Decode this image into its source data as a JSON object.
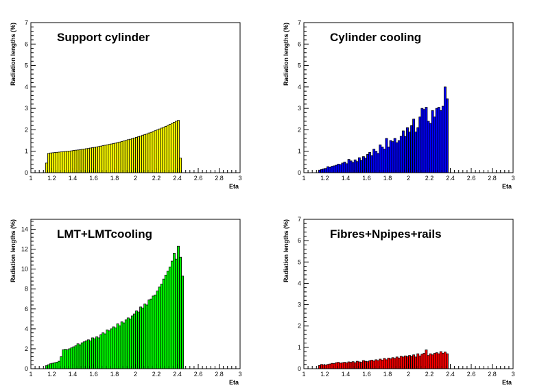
{
  "chart_data": [
    {
      "type": "bar",
      "title": "Support cylinder",
      "xlabel": "Eta",
      "ylabel": "Radiation lengths (%)",
      "xlim": [
        1,
        3
      ],
      "ylim": [
        0,
        7
      ],
      "xticks": [
        "1",
        "1.2",
        "1.4",
        "1.6",
        "1.8",
        "2",
        "2.2",
        "2.4",
        "2.6",
        "2.8",
        "3"
      ],
      "yticks": [
        "0",
        "1",
        "2",
        "3",
        "4",
        "5",
        "6",
        "7"
      ],
      "color": "#ffff00",
      "bin_start": 1.14,
      "bin_width": 0.02,
      "values": [
        0.45,
        0.9,
        0.92,
        0.93,
        0.94,
        0.95,
        0.96,
        0.97,
        0.98,
        0.99,
        1.0,
        1.01,
        1.02,
        1.04,
        1.05,
        1.06,
        1.07,
        1.09,
        1.1,
        1.12,
        1.13,
        1.15,
        1.17,
        1.18,
        1.2,
        1.22,
        1.24,
        1.26,
        1.28,
        1.3,
        1.32,
        1.34,
        1.36,
        1.38,
        1.41,
        1.43,
        1.46,
        1.48,
        1.51,
        1.54,
        1.56,
        1.59,
        1.62,
        1.65,
        1.68,
        1.71,
        1.75,
        1.78,
        1.81,
        1.85,
        1.88,
        1.92,
        1.96,
        2.0,
        2.04,
        2.08,
        2.12,
        2.16,
        2.21,
        2.25,
        2.3,
        2.35,
        2.4,
        2.44,
        0.68
      ]
    },
    {
      "type": "bar",
      "title": "Cylinder cooling",
      "xlabel": "Eta",
      "ylabel": "Radiation lengths (%)",
      "xlim": [
        1,
        3
      ],
      "ylim": [
        0,
        7
      ],
      "xticks": [
        "1",
        "1.2",
        "1.4",
        "1.6",
        "1.8",
        "2",
        "2.2",
        "2.4",
        "2.6",
        "2.8",
        "3"
      ],
      "yticks": [
        "0",
        "1",
        "2",
        "3",
        "4",
        "5",
        "6",
        "7"
      ],
      "color": "#0000ff",
      "bin_start": 1.14,
      "bin_width": 0.02,
      "values": [
        0.12,
        0.15,
        0.18,
        0.2,
        0.28,
        0.25,
        0.3,
        0.32,
        0.35,
        0.4,
        0.38,
        0.45,
        0.5,
        0.42,
        0.62,
        0.55,
        0.48,
        0.6,
        0.52,
        0.7,
        0.58,
        0.75,
        0.68,
        0.85,
        0.95,
        0.8,
        1.1,
        1.0,
        0.9,
        1.3,
        1.2,
        1.1,
        1.6,
        1.2,
        1.5,
        1.45,
        1.6,
        1.4,
        1.5,
        1.7,
        1.95,
        1.7,
        2.1,
        1.9,
        2.2,
        2.5,
        1.9,
        2.1,
        2.6,
        3.0,
        2.95,
        3.05,
        2.4,
        2.3,
        2.9,
        2.6,
        3.0,
        3.05,
        2.9,
        3.1,
        4.0,
        3.45
      ]
    },
    {
      "type": "bar",
      "title": "LMT+LMTcooling",
      "xlabel": "Eta",
      "ylabel": "Radiation lengths (%)",
      "xlim": [
        1,
        3
      ],
      "ylim": [
        0,
        15
      ],
      "xticks": [
        "1",
        "1.2",
        "1.4",
        "1.6",
        "1.8",
        "2",
        "2.2",
        "2.4",
        "2.6",
        "2.8",
        "3"
      ],
      "yticks": [
        "0",
        "2",
        "4",
        "6",
        "8",
        "10",
        "12",
        "14"
      ],
      "color": "#00ff00",
      "bin_start": 1.14,
      "bin_width": 0.02,
      "values": [
        0.3,
        0.4,
        0.5,
        0.55,
        0.6,
        0.65,
        0.75,
        1.2,
        1.9,
        1.95,
        1.9,
        2.0,
        2.1,
        2.2,
        2.3,
        2.5,
        2.4,
        2.6,
        2.7,
        2.8,
        2.9,
        2.8,
        3.1,
        3.0,
        3.2,
        3.1,
        3.4,
        3.6,
        3.5,
        3.9,
        3.8,
        4.0,
        4.2,
        4.1,
        4.5,
        4.3,
        4.7,
        4.6,
        4.9,
        5.1,
        5.0,
        5.3,
        5.5,
        5.8,
        5.7,
        6.2,
        6.1,
        6.5,
        6.4,
        6.9,
        7.0,
        7.3,
        7.4,
        7.8,
        8.2,
        8.5,
        9.0,
        9.4,
        9.8,
        10.2,
        10.8,
        11.6,
        11.0,
        12.3,
        11.2,
        9.3
      ]
    },
    {
      "type": "bar",
      "title": "Fibres+Npipes+rails",
      "xlabel": "Eta",
      "ylabel": "Radiation lengths (%)",
      "xlim": [
        1,
        3
      ],
      "ylim": [
        0,
        7
      ],
      "xticks": [
        "1",
        "1.2",
        "1.4",
        "1.6",
        "1.8",
        "2",
        "2.2",
        "2.4",
        "2.6",
        "2.8",
        "3"
      ],
      "yticks": [
        "0",
        "1",
        "2",
        "3",
        "4",
        "5",
        "6",
        "7"
      ],
      "color": "#ff0000",
      "bin_start": 1.14,
      "bin_width": 0.02,
      "values": [
        0.15,
        0.2,
        0.18,
        0.17,
        0.2,
        0.22,
        0.25,
        0.24,
        0.28,
        0.3,
        0.26,
        0.28,
        0.3,
        0.27,
        0.32,
        0.3,
        0.33,
        0.28,
        0.35,
        0.32,
        0.3,
        0.38,
        0.35,
        0.33,
        0.37,
        0.4,
        0.36,
        0.42,
        0.38,
        0.45,
        0.4,
        0.48,
        0.42,
        0.5,
        0.46,
        0.52,
        0.48,
        0.55,
        0.5,
        0.58,
        0.55,
        0.6,
        0.56,
        0.62,
        0.58,
        0.65,
        0.55,
        0.7,
        0.6,
        0.68,
        0.72,
        0.88,
        0.62,
        0.7,
        0.65,
        0.72,
        0.75,
        0.7,
        0.8,
        0.72,
        0.78,
        0.7
      ]
    }
  ]
}
